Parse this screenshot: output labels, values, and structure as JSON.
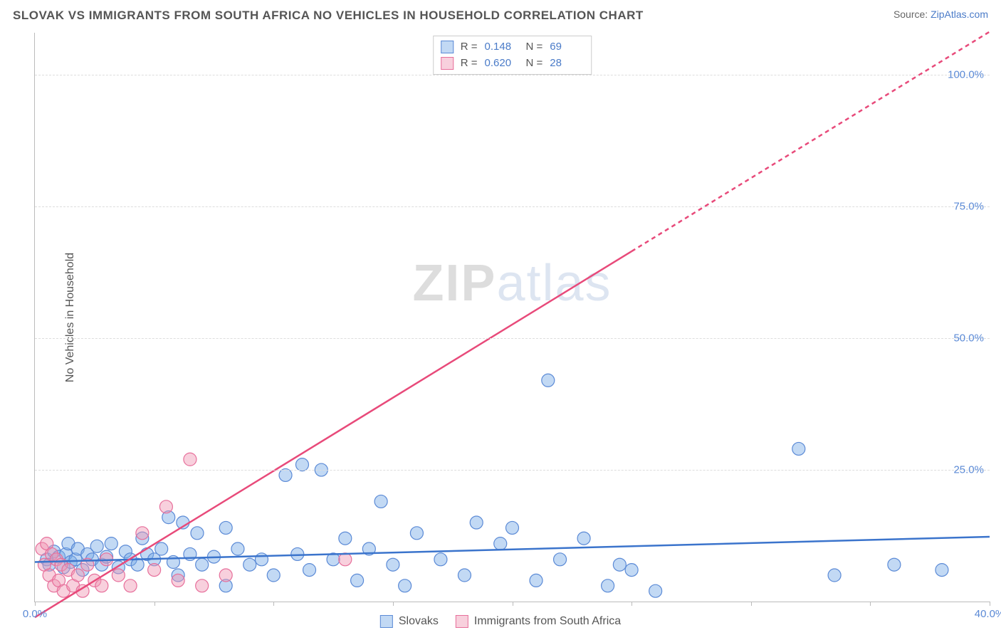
{
  "header": {
    "title": "SLOVAK VS IMMIGRANTS FROM SOUTH AFRICA NO VEHICLES IN HOUSEHOLD CORRELATION CHART",
    "source_prefix": "Source: ",
    "source_link": "ZipAtlas.com"
  },
  "ylabel": "No Vehicles in Household",
  "watermark": {
    "bold": "ZIP",
    "light": "atlas"
  },
  "chart": {
    "type": "scatter",
    "xlim": [
      0,
      40
    ],
    "ylim": [
      0,
      108
    ],
    "background_color": "#ffffff",
    "grid_color": "#dddddd",
    "grid_dash": "4,4",
    "yticks": [
      25,
      50,
      75,
      100
    ],
    "ytick_labels": [
      "25.0%",
      "50.0%",
      "75.0%",
      "100.0%"
    ],
    "xtick_positions": [
      0,
      5,
      10,
      15,
      20,
      25,
      30,
      35,
      40
    ],
    "xlim_labels": {
      "left": "0.0%",
      "right": "40.0%"
    },
    "series": [
      {
        "name": "Slovaks",
        "color_fill": "rgba(120,170,230,0.45)",
        "color_stroke": "#5b8ad6",
        "marker_radius": 9,
        "regression": {
          "slope": 0.12,
          "intercept": 7.5,
          "color": "#3b74cc",
          "width": 2.5,
          "dash": ""
        },
        "stats": {
          "R": "0.148",
          "N": "69"
        },
        "points": [
          [
            0.5,
            8
          ],
          [
            0.6,
            7
          ],
          [
            0.8,
            9.5
          ],
          [
            1.0,
            8.5
          ],
          [
            1.2,
            6.5
          ],
          [
            1.3,
            9
          ],
          [
            1.4,
            11
          ],
          [
            1.5,
            7.5
          ],
          [
            1.7,
            8
          ],
          [
            1.8,
            10
          ],
          [
            2.0,
            6
          ],
          [
            2.2,
            9
          ],
          [
            2.4,
            8
          ],
          [
            2.6,
            10.5
          ],
          [
            2.8,
            7
          ],
          [
            3.0,
            8.5
          ],
          [
            3.2,
            11
          ],
          [
            3.5,
            6.5
          ],
          [
            3.8,
            9.5
          ],
          [
            4.0,
            8
          ],
          [
            4.3,
            7
          ],
          [
            4.5,
            12
          ],
          [
            4.7,
            9
          ],
          [
            5.0,
            8
          ],
          [
            5.3,
            10
          ],
          [
            5.6,
            16
          ],
          [
            5.8,
            7.5
          ],
          [
            6.0,
            5
          ],
          [
            6.2,
            15
          ],
          [
            6.5,
            9
          ],
          [
            6.8,
            13
          ],
          [
            7.0,
            7
          ],
          [
            7.5,
            8.5
          ],
          [
            8.0,
            14
          ],
          [
            8.0,
            3
          ],
          [
            8.5,
            10
          ],
          [
            9.0,
            7
          ],
          [
            9.5,
            8
          ],
          [
            10.0,
            5
          ],
          [
            10.5,
            24
          ],
          [
            11.0,
            9
          ],
          [
            11.2,
            26
          ],
          [
            11.5,
            6
          ],
          [
            12.0,
            25
          ],
          [
            12.5,
            8
          ],
          [
            13.0,
            12
          ],
          [
            13.5,
            4
          ],
          [
            14.0,
            10
          ],
          [
            14.5,
            19
          ],
          [
            15.0,
            7
          ],
          [
            15.5,
            3
          ],
          [
            16.0,
            13
          ],
          [
            17.0,
            8
          ],
          [
            18.0,
            5
          ],
          [
            18.5,
            15
          ],
          [
            19.5,
            11
          ],
          [
            20.0,
            14
          ],
          [
            21.0,
            4
          ],
          [
            21.5,
            42
          ],
          [
            22.0,
            8
          ],
          [
            23.0,
            12
          ],
          [
            24.0,
            3
          ],
          [
            24.5,
            7
          ],
          [
            25.0,
            6
          ],
          [
            26.0,
            2
          ],
          [
            32.0,
            29
          ],
          [
            33.5,
            5
          ],
          [
            36.0,
            7
          ],
          [
            38.0,
            6
          ]
        ]
      },
      {
        "name": "Immigrants from South Africa",
        "color_fill": "rgba(240,150,180,0.45)",
        "color_stroke": "#e76f9b",
        "marker_radius": 9,
        "regression": {
          "slope": 2.78,
          "intercept": -3,
          "color": "#e84a7a",
          "width": 2.5,
          "dash_after_x": 25,
          "dash": "6,5"
        },
        "stats": {
          "R": "0.620",
          "N": "28"
        },
        "points": [
          [
            0.3,
            10
          ],
          [
            0.4,
            7
          ],
          [
            0.5,
            11
          ],
          [
            0.6,
            5
          ],
          [
            0.7,
            9
          ],
          [
            0.8,
            3
          ],
          [
            0.9,
            8
          ],
          [
            1.0,
            4
          ],
          [
            1.1,
            7
          ],
          [
            1.2,
            2
          ],
          [
            1.4,
            6
          ],
          [
            1.6,
            3
          ],
          [
            1.8,
            5
          ],
          [
            2.0,
            2
          ],
          [
            2.2,
            7
          ],
          [
            2.5,
            4
          ],
          [
            2.8,
            3
          ],
          [
            3.0,
            8
          ],
          [
            3.5,
            5
          ],
          [
            4.0,
            3
          ],
          [
            4.5,
            13
          ],
          [
            5.0,
            6
          ],
          [
            5.5,
            18
          ],
          [
            6.0,
            4
          ],
          [
            6.5,
            27
          ],
          [
            7.0,
            3
          ],
          [
            8.0,
            5
          ],
          [
            13.0,
            8
          ]
        ]
      }
    ]
  },
  "stats_box": {
    "rows": [
      {
        "swatch_fill": "rgba(120,170,230,0.45)",
        "swatch_border": "#5b8ad6",
        "R_label": "R =",
        "R": "0.148",
        "N_label": "N =",
        "N": "69"
      },
      {
        "swatch_fill": "rgba(240,150,180,0.45)",
        "swatch_border": "#e76f9b",
        "R_label": "R =",
        "R": "0.620",
        "N_label": "N =",
        "N": "28"
      }
    ]
  },
  "legend": {
    "items": [
      {
        "swatch_fill": "rgba(120,170,230,0.45)",
        "swatch_border": "#5b8ad6",
        "label": "Slovaks"
      },
      {
        "swatch_fill": "rgba(240,150,180,0.45)",
        "swatch_border": "#e76f9b",
        "label": "Immigrants from South Africa"
      }
    ]
  }
}
